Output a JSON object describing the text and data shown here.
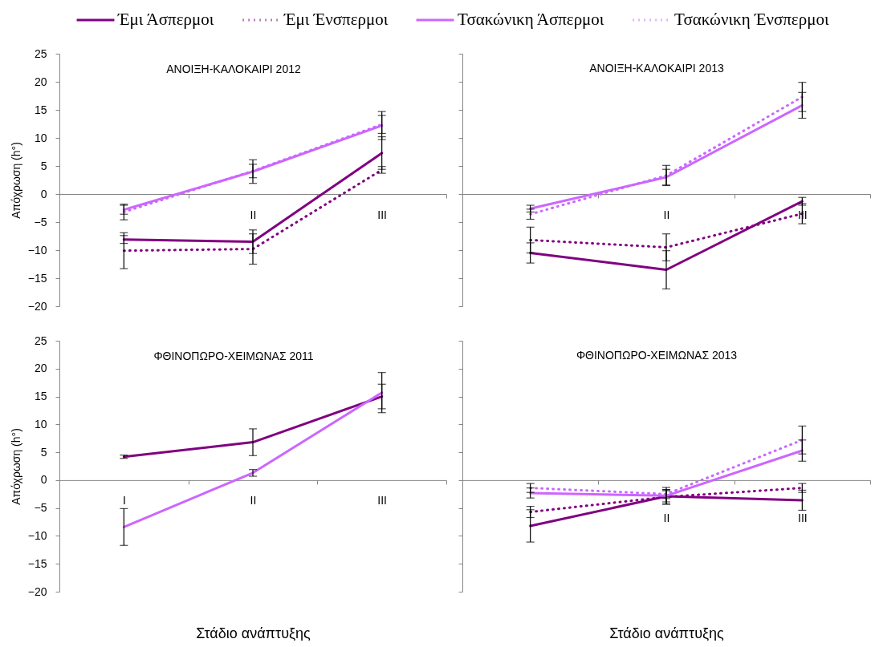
{
  "chart_data": [
    {
      "type": "line",
      "title": "ΑΝΟΙΞΗ-ΚΑΛΟΚΑΙΡΙ 2012",
      "ylabel": "Απόχρωση (h°)",
      "categories": [
        null,
        "II",
        "III"
      ],
      "ylim": [
        -20,
        25
      ],
      "yticks": [
        -20,
        -15,
        -10,
        -5,
        0,
        5,
        10,
        15,
        20,
        25
      ],
      "legend": "top",
      "series": [
        {
          "name": "Έμι Άσπερμοι",
          "color": "#800080",
          "line_style": "solid",
          "values": [
            -8.1,
            -8.5,
            7.3
          ],
          "errors": [
            0.7,
            2.1,
            2.9
          ]
        },
        {
          "name": "Έμι Ένσπερμοι",
          "color": "#800080",
          "line_style": "dotted",
          "values": [
            -10.1,
            -9.8,
            4.3
          ],
          "errors": [
            3.2,
            2.7,
            0.6
          ]
        },
        {
          "name": "Τσακώνικη Άσπερμοι",
          "color": "#cc66ff",
          "line_style": "solid",
          "values": [
            -2.8,
            4.0,
            12.2
          ],
          "errors": [
            0.8,
            2.1,
            2.5
          ]
        },
        {
          "name": "Τσακώνικη Ένσπερμοι",
          "color": "#cc66ff",
          "line_style": "dotted",
          "values": [
            -3.2,
            4.1,
            12.4
          ],
          "errors": [
            1.4,
            1.2,
            1.6
          ]
        }
      ]
    },
    {
      "type": "line",
      "title": "ΑΝΟΙΞΗ-ΚΑΛΟΚΑΙΡΙ 2013",
      "categories": [
        null,
        "II",
        "III"
      ],
      "ylim": [
        -20,
        25
      ],
      "yticks": [
        -20,
        -15,
        -10,
        -5,
        0,
        5,
        10,
        15,
        20,
        25
      ],
      "tick_labels": "x",
      "series": [
        {
          "name": "Έμι Άσπερμοι",
          "color": "#800080",
          "line_style": "solid",
          "values": [
            -10.5,
            -13.5,
            -1.3
          ],
          "errors": [
            1.8,
            3.4,
            0.7
          ]
        },
        {
          "name": "Έμι Ένσπερμοι",
          "color": "#800080",
          "line_style": "dotted",
          "values": [
            -8.2,
            -9.5,
            -3.5
          ],
          "errors": [
            2.3,
            2.4,
            1.8
          ]
        },
        {
          "name": "Τσακώνικη Άσπερμοι",
          "color": "#cc66ff",
          "line_style": "solid",
          "values": [
            -2.6,
            3.0,
            15.8
          ],
          "errors": [
            0.6,
            1.4,
            2.3
          ]
        },
        {
          "name": "Τσακώνικη Ένσπερμοι",
          "color": "#cc66ff",
          "line_style": "dotted",
          "values": [
            -3.6,
            3.3,
            17.3
          ],
          "errors": [
            0.9,
            1.8,
            2.6
          ]
        }
      ]
    },
    {
      "type": "line",
      "title": "ΦΘΙΝΟΠΩΡΟ-ΧΕΙΜΩΝΑΣ 2011",
      "xlabel": "Στάδιο ανάπτυξης",
      "ylabel": "Απόχρωση (h°)",
      "categories": [
        "I",
        "II",
        "III"
      ],
      "ylim": [
        -20,
        25
      ],
      "yticks": [
        -20,
        -15,
        -10,
        -5,
        0,
        5,
        10,
        15,
        20,
        25
      ],
      "series": [
        {
          "name": "Έμι Άσπερμοι",
          "color": "#800080",
          "line_style": "solid",
          "values": [
            4.2,
            6.8,
            15.0
          ],
          "errors": [
            0.3,
            2.4,
            2.2
          ]
        },
        {
          "name": "Τσακώνικη Άσπερμοι",
          "color": "#cc66ff",
          "line_style": "solid",
          "values": [
            -8.4,
            1.3,
            15.7
          ],
          "errors": [
            3.3,
            0.6,
            3.6
          ]
        }
      ]
    },
    {
      "type": "line",
      "title": "ΦΘΙΝΟΠΩΡΟ-ΧΕΙΜΩΝΑΣ 2013",
      "xlabel": "Στάδιο ανάπτυξης",
      "categories": [
        null,
        "II",
        "III"
      ],
      "ylim": [
        -20,
        25
      ],
      "yticks": [
        -20,
        -15,
        -10,
        -5,
        0,
        5,
        10,
        15,
        20,
        25
      ],
      "tick_labels": "x",
      "series": [
        {
          "name": "Έμι Άσπερμοι",
          "color": "#800080",
          "line_style": "solid",
          "values": [
            -8.2,
            -2.9,
            -3.6
          ],
          "errors": [
            2.9,
            1.0,
            1.8
          ]
        },
        {
          "name": "Έμι Ένσπερμοι",
          "color": "#800080",
          "line_style": "dotted",
          "values": [
            -5.7,
            -3.0,
            -1.4
          ],
          "errors": [
            1.0,
            1.3,
            0.8
          ]
        },
        {
          "name": "Τσακώνικη Άσπερμοι",
          "color": "#cc66ff",
          "line_style": "solid",
          "values": [
            -2.3,
            -2.8,
            5.3
          ],
          "errors": [
            0.9,
            1.5,
            1.9
          ]
        },
        {
          "name": "Τσακώνικη Ένσπερμοι",
          "color": "#cc66ff",
          "line_style": "dotted",
          "values": [
            -1.4,
            -2.5,
            7.2
          ],
          "errors": [
            0.8,
            0.8,
            2.5
          ]
        }
      ]
    }
  ]
}
